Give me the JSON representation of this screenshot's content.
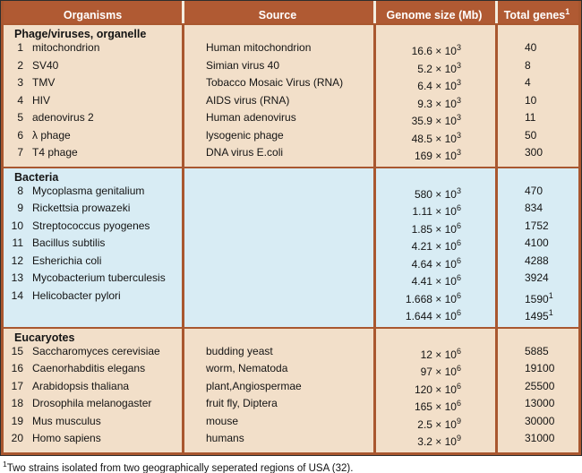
{
  "table": {
    "colors": {
      "header_bg": "#B05A33",
      "divider": "#A9572F",
      "section_tan": "#F2DFC9",
      "section_blue": "#D8ECF4",
      "separator": "#F3EDE0",
      "outer_border": "#2e2e2e",
      "header_text": "#ffffff"
    },
    "headers": [
      {
        "label": "Organisms",
        "sup": ""
      },
      {
        "label": "Source",
        "sup": ""
      },
      {
        "label": "Genome size (Mb)",
        "sup": ""
      },
      {
        "label": "Total genes",
        "sup": "1"
      }
    ],
    "sections": [
      {
        "title": "Phage/viruses, organelle",
        "theme": "tan",
        "rows": [
          {
            "num": "1",
            "name": "mitochondrion",
            "source": "Human mitochondrion",
            "size_base": "16.6 × 10",
            "size_exp": "3",
            "genes": "40",
            "genes_sup": ""
          },
          {
            "num": "2",
            "name": "SV40",
            "source": "Simian virus 40",
            "size_base": "5.2 × 10",
            "size_exp": "3",
            "genes": "8",
            "genes_sup": ""
          },
          {
            "num": "3",
            "name": "TMV",
            "source": "Tobacco Mosaic Virus (RNA)",
            "size_base": "6.4 × 10",
            "size_exp": "3",
            "genes": "4",
            "genes_sup": ""
          },
          {
            "num": "4",
            "name": "HIV",
            "source": "AIDS virus (RNA)",
            "size_base": "9.3 × 10",
            "size_exp": "3",
            "genes": "10",
            "genes_sup": ""
          },
          {
            "num": "5",
            "name": "adenovirus 2",
            "source": "Human adenovirus",
            "size_base": "35.9 × 10",
            "size_exp": "3",
            "genes": "11",
            "genes_sup": ""
          },
          {
            "num": "6",
            "name": "λ phage",
            "source": "lysogenic phage",
            "size_base": "48.5 × 10",
            "size_exp": "3",
            "genes": "50",
            "genes_sup": ""
          },
          {
            "num": "7",
            "name": "T4 phage",
            "source": "DNA virus E.coli",
            "size_base": "169 × 10",
            "size_exp": "3",
            "genes": "300",
            "genes_sup": ""
          }
        ]
      },
      {
        "title": "Bacteria",
        "theme": "blue",
        "rows": [
          {
            "num": "8",
            "name": "Mycoplasma genitalium",
            "source": "",
            "size_base": "580 × 10",
            "size_exp": "3",
            "genes": "470",
            "genes_sup": ""
          },
          {
            "num": "9",
            "name": "Rickettsia prowazeki",
            "source": "",
            "size_base": "1.11 × 10",
            "size_exp": "6",
            "genes": "834",
            "genes_sup": ""
          },
          {
            "num": "10",
            "name": "Streptococcus pyogenes",
            "source": "",
            "size_base": "1.85 × 10",
            "size_exp": "6",
            "genes": "1752",
            "genes_sup": ""
          },
          {
            "num": "11",
            "name": "Bacillus subtilis",
            "source": "",
            "size_base": "4.21 × 10",
            "size_exp": "6",
            "genes": "4100",
            "genes_sup": ""
          },
          {
            "num": "12",
            "name": "Esherichia coli",
            "source": "",
            "size_base": "4.64 × 10",
            "size_exp": "6",
            "genes": "4288",
            "genes_sup": ""
          },
          {
            "num": "13",
            "name": "Mycobacterium tuberculesis",
            "source": "",
            "size_base": "4.41 × 10",
            "size_exp": "6",
            "genes": "3924",
            "genes_sup": ""
          },
          {
            "num": "14",
            "name": "Helicobacter pylori",
            "source": "",
            "size_base": "1.668 × 10",
            "size_exp": "6",
            "genes": "1590",
            "genes_sup": "1"
          },
          {
            "num": "",
            "name": "",
            "source": "",
            "size_base": "1.644 × 10",
            "size_exp": "6",
            "genes": "1495",
            "genes_sup": "1"
          }
        ]
      },
      {
        "title": "Eucaryotes",
        "theme": "tan",
        "rows": [
          {
            "num": "15",
            "name": "Saccharomyces cerevisiae",
            "source": "budding yeast",
            "size_base": "12 × 10",
            "size_exp": "6",
            "genes": "5885",
            "genes_sup": ""
          },
          {
            "num": "16",
            "name": "Caenorhabditis elegans",
            "source": "worm, Nematoda",
            "size_base": "97 × 10",
            "size_exp": "6",
            "genes": "19100",
            "genes_sup": ""
          },
          {
            "num": "17",
            "name": "Arabidopsis thaliana",
            "source": "plant,Angiospermae",
            "size_base": "120 × 10",
            "size_exp": "6",
            "genes": "25500",
            "genes_sup": ""
          },
          {
            "num": "18",
            "name": "Drosophila melanogaster",
            "source": "fruit fly, Diptera",
            "size_base": "165 × 10",
            "size_exp": "6",
            "genes": "13000",
            "genes_sup": ""
          },
          {
            "num": "19",
            "name": "Mus musculus",
            "source": "mouse",
            "size_base": "2.5 × 10",
            "size_exp": "9",
            "genes": "30000",
            "genes_sup": ""
          },
          {
            "num": "20",
            "name": "Homo sapiens",
            "source": "humans",
            "size_base": "3.2 × 10",
            "size_exp": "9",
            "genes": "31000",
            "genes_sup": ""
          }
        ]
      }
    ],
    "footnote": {
      "sup": "1",
      "text": "Two strains isolated from two geographically seperated regions of USA (32)."
    }
  }
}
